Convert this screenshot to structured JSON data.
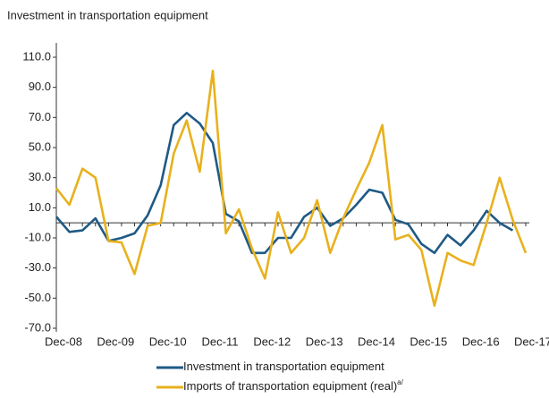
{
  "chart_data": {
    "type": "line",
    "title": "Investment in transportation equipment",
    "categories": [
      "Dec-08",
      null,
      null,
      null,
      "Dec-09",
      null,
      null,
      null,
      "Dec-10",
      null,
      null,
      null,
      "Dec-11",
      null,
      null,
      null,
      "Dec-12",
      null,
      null,
      null,
      "Dec-13",
      null,
      null,
      null,
      "Dec-14",
      null,
      null,
      null,
      "Dec-15",
      null,
      null,
      null,
      "Dec-16",
      null,
      null,
      null,
      "Dec-17"
    ],
    "series": [
      {
        "name": "Investment in transportation equipment",
        "color": "#1f5a85",
        "values": [
          4,
          -6,
          -5,
          3,
          -12,
          -10,
          -7,
          5,
          25,
          65,
          73,
          66,
          53,
          6,
          1,
          -20,
          -20,
          -10,
          -10,
          4,
          10,
          -2,
          3,
          12,
          22,
          20,
          2,
          -1,
          -14,
          -20,
          -8,
          -15,
          -5,
          8,
          0,
          -5,
          null
        ]
      },
      {
        "name": "Imports of transportation equipment (real)",
        "footnote_marker": "a/",
        "color": "#e8b11c",
        "values": [
          23,
          12,
          36,
          30,
          -12,
          -13,
          -34,
          -2,
          0,
          46,
          68,
          34,
          101,
          -7,
          9,
          -17,
          -37,
          7,
          -20,
          -10,
          15,
          -20,
          3,
          22,
          40,
          65,
          -11,
          -8,
          -18,
          -55,
          -20,
          -25,
          -28,
          0,
          30,
          2,
          -20
        ]
      }
    ],
    "ylim": [
      -70,
      110
    ],
    "yticks": [
      {
        "value": -70,
        "label": "-70.0"
      },
      {
        "value": -50,
        "label": "-50.0"
      },
      {
        "value": -30,
        "label": "-30.0"
      },
      {
        "value": -10,
        "label": "-10.0"
      },
      {
        "value": 10,
        "label": "10.0"
      },
      {
        "value": 30,
        "label": "30.0"
      },
      {
        "value": 50,
        "label": "50.0"
      },
      {
        "value": 70,
        "label": "70.0"
      },
      {
        "value": 90,
        "label": "90.0"
      },
      {
        "value": 110,
        "label": "110.0"
      }
    ],
    "grid": false
  }
}
